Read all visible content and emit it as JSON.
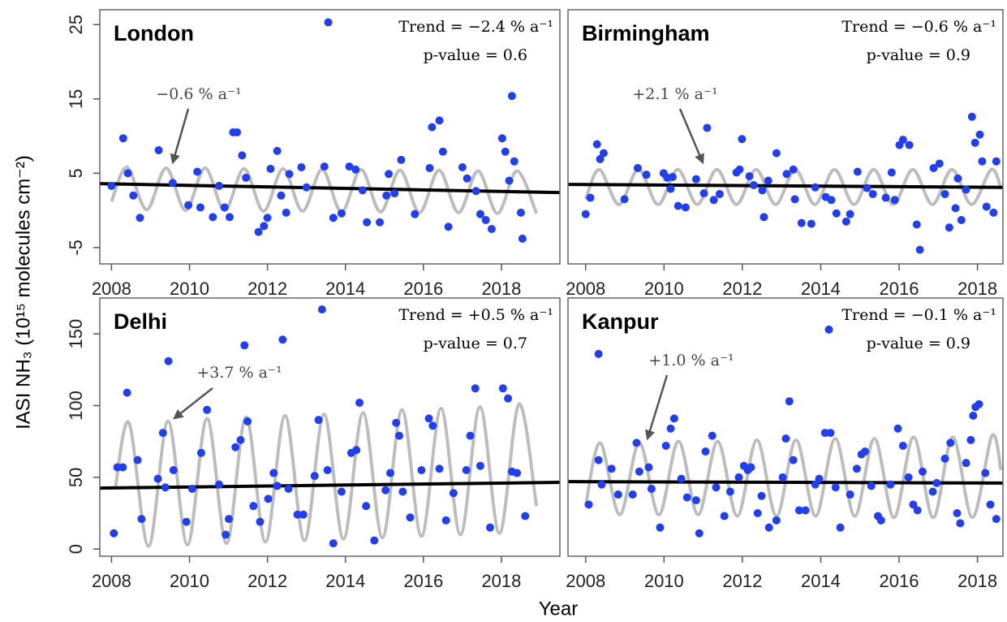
{
  "ylabel": "IASI NH₃ (10¹⁵ molecules cm⁻²)",
  "xlabel": "Year",
  "chart_data": [
    {
      "type": "scatter",
      "title": "London",
      "trend_text": "Trend = −2.4 % a⁻¹",
      "p_text": "p-value = 0.6",
      "arrow_label": "−0.6 % a⁻¹",
      "xlim": [
        2007.7,
        2019.5
      ],
      "ylim": [
        -7.2,
        27
      ],
      "xticks": [
        2008,
        2010,
        2012,
        2014,
        2016,
        2018
      ],
      "yticks": [
        -5,
        5,
        15,
        25
      ],
      "color": "#1f3ff0",
      "x": [
        2008.0,
        2008.3,
        2008.42,
        2008.56,
        2008.73,
        2009.21,
        2009.57,
        2009.97,
        2010.2,
        2010.28,
        2010.6,
        2010.76,
        2010.9,
        2011.03,
        2011.12,
        2011.22,
        2011.35,
        2011.45,
        2011.77,
        2011.91,
        2012.0,
        2012.08,
        2012.25,
        2012.35,
        2012.56,
        2012.48,
        2012.87,
        2013.0,
        2013.46,
        2013.56,
        2013.69,
        2013.9,
        2014.1,
        2014.26,
        2014.44,
        2014.55,
        2014.88,
        2015.05,
        2015.11,
        2015.26,
        2015.43,
        2015.78,
        2016.16,
        2016.22,
        2016.41,
        2016.5,
        2016.64,
        2017.0,
        2017.12,
        2017.35,
        2017.46,
        2017.6,
        2017.75,
        2018.02,
        2018.1,
        2018.2,
        2018.27,
        2018.33,
        2018.5,
        2018.54
      ],
      "values": [
        3.3,
        9.7,
        5.0,
        2.0,
        -1.0,
        8.1,
        3.7,
        0.7,
        5.2,
        0.4,
        -0.9,
        3.3,
        0.4,
        -0.9,
        10.5,
        10.5,
        7.4,
        4.4,
        -2.9,
        -2.1,
        -1.0,
        5.6,
        8.0,
        2.0,
        4.9,
        -0.3,
        5.8,
        3.1,
        5.9,
        25.3,
        -1.0,
        -0.4,
        5.9,
        5.5,
        2.7,
        -1.6,
        -1.6,
        2.0,
        4.9,
        2.3,
        6.8,
        -0.5,
        5.7,
        11.2,
        12.1,
        7.9,
        -2.2,
        5.8,
        4.3,
        2.6,
        -0.5,
        -1.3,
        -2.5,
        9.7,
        7.9,
        4.0,
        15.4,
        6.6,
        -0.3,
        -3.8
      ],
      "fit": {
        "color": "#bdbdbd",
        "x": [
          2008.0,
          2008.4,
          2008.9,
          2009.4,
          2009.9,
          2010.4,
          2010.9,
          2011.4,
          2011.9,
          2012.4,
          2012.9,
          2013.4,
          2013.9,
          2014.4,
          2014.9,
          2015.4,
          2015.9,
          2016.4,
          2016.9,
          2017.4,
          2017.9,
          2018.4,
          2018.9
        ],
        "values": [
          1.2,
          5.8,
          0.1,
          5.7,
          0.0,
          5.7,
          0.0,
          5.6,
          -0.1,
          5.6,
          -0.1,
          5.5,
          -0.2,
          5.5,
          -0.2,
          5.4,
          -0.3,
          5.4,
          -0.3,
          5.3,
          -0.4,
          5.3,
          -0.4
        ]
      },
      "trend": {
        "color": "#000000",
        "x": [
          2007.7,
          2019.5
        ],
        "values": [
          3.6,
          2.4
        ]
      }
    },
    {
      "type": "scatter",
      "title": "Birmingham",
      "trend_text": "Trend = −0.6 % a⁻¹",
      "p_text": "p-value = 0.9",
      "arrow_label": "+2.1 % a⁻¹",
      "xlim": [
        2007.55,
        2018.65
      ],
      "ylim": [
        -7.2,
        27
      ],
      "xticks": [
        2008,
        2010,
        2012,
        2014,
        2016,
        2018
      ],
      "color": "#1f3ff0",
      "x": [
        2008.0,
        2008.12,
        2008.29,
        2008.37,
        2008.46,
        2008.99,
        2009.33,
        2009.55,
        2009.99,
        2010.08,
        2010.17,
        2010.22,
        2010.36,
        2010.55,
        2010.82,
        2011.02,
        2011.1,
        2011.27,
        2011.42,
        2011.85,
        2011.93,
        2011.99,
        2012.18,
        2012.29,
        2012.51,
        2012.55,
        2012.66,
        2012.87,
        2013.13,
        2013.3,
        2013.34,
        2013.51,
        2013.76,
        2013.86,
        2014.13,
        2014.27,
        2014.4,
        2014.65,
        2014.75,
        2014.94,
        2015.18,
        2015.33,
        2015.66,
        2015.81,
        2015.89,
        2016.01,
        2016.1,
        2016.26,
        2016.45,
        2016.53,
        2016.88,
        2017.03,
        2017.17,
        2017.28,
        2017.44,
        2017.5,
        2017.59,
        2017.71,
        2017.86,
        2017.94,
        2018.06,
        2018.12,
        2018.23,
        2018.41,
        2018.48
      ],
      "values": [
        -0.5,
        1.7,
        8.9,
        6.9,
        7.7,
        1.5,
        5.7,
        4.8,
        5.0,
        4.4,
        2.9,
        4.5,
        0.6,
        0.4,
        4.2,
        2.3,
        11.1,
        1.4,
        2.2,
        5.1,
        5.5,
        9.6,
        4.6,
        3.4,
        2.7,
        -0.9,
        4.0,
        7.7,
        4.9,
        5.5,
        1.5,
        -1.7,
        -1.8,
        3.1,
        1.8,
        1.4,
        -0.4,
        -1.5,
        -0.5,
        5.2,
        3.0,
        2.2,
        1.7,
        5.1,
        1.4,
        8.8,
        9.5,
        8.8,
        -1.9,
        -5.3,
        5.7,
        6.3,
        2.2,
        -2.3,
        0.3,
        4.3,
        -1.3,
        2.8,
        12.6,
        9.1,
        10.2,
        6.6,
        0.5,
        -0.3,
        6.6
      ],
      "fit": {
        "color": "#bdbdbd",
        "x": [
          2008.0,
          2008.35,
          2008.85,
          2009.35,
          2009.85,
          2010.35,
          2010.85,
          2011.35,
          2011.85,
          2012.35,
          2012.85,
          2013.35,
          2013.85,
          2014.35,
          2014.85,
          2015.35,
          2015.85,
          2016.35,
          2016.85,
          2017.35,
          2017.85,
          2018.35,
          2018.6
        ],
        "values": [
          1.5,
          5.5,
          0.8,
          5.5,
          0.8,
          5.5,
          0.8,
          5.5,
          0.8,
          5.5,
          0.8,
          5.5,
          0.8,
          5.5,
          0.8,
          5.5,
          0.8,
          5.5,
          0.8,
          5.5,
          0.8,
          5.5,
          3.0
        ]
      },
      "trend": {
        "color": "#000000",
        "x": [
          2007.55,
          2018.65
        ],
        "values": [
          3.5,
          3.1
        ]
      }
    },
    {
      "type": "scatter",
      "title": "Delhi",
      "trend_text": "Trend = +0.5 % a⁻¹",
      "p_text": "p-value = 0.7",
      "arrow_label": "+3.7 % a⁻¹",
      "xlim": [
        2007.7,
        2019.5
      ],
      "ylim": [
        -5,
        175
      ],
      "xticks": [
        2008,
        2010,
        2012,
        2014,
        2016,
        2018
      ],
      "yticks": [
        0,
        50,
        100,
        150
      ],
      "color": "#1f3ff0",
      "x": [
        2008.06,
        2008.15,
        2008.29,
        2008.4,
        2008.67,
        2008.77,
        2009.19,
        2009.32,
        2009.38,
        2009.46,
        2009.59,
        2009.92,
        2010.07,
        2010.3,
        2010.45,
        2010.76,
        2010.93,
        2011.01,
        2011.18,
        2011.31,
        2011.41,
        2011.49,
        2011.64,
        2011.81,
        2012.02,
        2012.16,
        2012.25,
        2012.39,
        2012.54,
        2012.77,
        2012.92,
        2013.21,
        2013.31,
        2013.4,
        2013.54,
        2013.69,
        2013.9,
        2014.15,
        2014.28,
        2014.36,
        2014.53,
        2014.74,
        2015.03,
        2015.15,
        2015.3,
        2015.38,
        2015.47,
        2015.66,
        2015.95,
        2016.14,
        2016.24,
        2016.41,
        2016.58,
        2016.77,
        2017.1,
        2017.2,
        2017.33,
        2017.46,
        2017.71,
        2018.04,
        2018.17,
        2018.27,
        2018.4,
        2018.61
      ],
      "values": [
        11,
        57,
        57,
        109,
        62,
        21,
        49,
        81,
        43,
        131,
        55,
        19,
        42,
        67,
        97,
        45,
        10,
        21,
        71,
        76,
        142,
        89,
        30,
        19,
        35,
        53,
        44,
        146,
        42,
        24,
        24,
        51,
        90,
        167,
        55,
        4,
        40,
        67,
        69,
        102,
        30,
        6,
        41,
        53,
        88,
        79,
        40,
        22,
        55,
        91,
        86,
        56,
        20,
        39,
        55,
        79,
        112,
        58,
        15,
        112,
        105,
        54,
        53,
        23
      ],
      "fit": {
        "color": "#bdbdbd",
        "x": [
          2008.1,
          2008.45,
          2008.95,
          2009.45,
          2009.95,
          2010.45,
          2010.95,
          2011.45,
          2011.95,
          2012.45,
          2012.95,
          2013.45,
          2013.95,
          2014.45,
          2014.95,
          2015.45,
          2015.95,
          2016.45,
          2016.95,
          2017.45,
          2017.95,
          2018.45,
          2018.9
        ],
        "values": [
          43,
          88,
          2,
          89,
          3,
          91,
          4,
          92,
          5,
          93,
          6,
          94,
          7,
          95,
          8,
          97,
          9,
          98,
          10,
          99,
          11,
          101,
          30
        ]
      },
      "trend": {
        "color": "#000000",
        "x": [
          2007.7,
          2019.5
        ],
        "values": [
          42.5,
          46.5
        ]
      }
    },
    {
      "type": "scatter",
      "title": "Kanpur",
      "trend_text": "Trend = −0.1 % a⁻¹",
      "p_text": "p-value = 0.9",
      "arrow_label": "+1.0 % a⁻¹",
      "xlim": [
        2007.55,
        2018.65
      ],
      "ylim": [
        -5,
        175
      ],
      "xticks": [
        2008,
        2010,
        2012,
        2014,
        2016,
        2018
      ],
      "color": "#1f3ff0",
      "x": [
        2008.08,
        2008.33,
        2008.33,
        2008.41,
        2008.66,
        2008.83,
        2009.2,
        2009.3,
        2009.37,
        2009.61,
        2009.68,
        2009.9,
        2010.05,
        2010.17,
        2010.26,
        2010.44,
        2010.59,
        2010.82,
        2010.9,
        2011.06,
        2011.23,
        2011.33,
        2011.54,
        2011.69,
        2011.91,
        2012.04,
        2012.14,
        2012.22,
        2012.39,
        2012.49,
        2012.68,
        2012.87,
        2013.03,
        2013.11,
        2013.2,
        2013.3,
        2013.45,
        2013.61,
        2013.86,
        2013.96,
        2014.11,
        2014.21,
        2014.25,
        2014.38,
        2014.5,
        2014.75,
        2014.92,
        2015.04,
        2015.13,
        2015.29,
        2015.46,
        2015.54,
        2015.78,
        2015.97,
        2016.1,
        2016.24,
        2016.36,
        2016.47,
        2016.6,
        2016.86,
        2016.96,
        2017.17,
        2017.31,
        2017.48,
        2017.56,
        2017.71,
        2017.83,
        2017.89,
        2017.95,
        2018.04,
        2018.2,
        2018.33,
        2018.48
      ],
      "values": [
        31,
        136,
        62,
        45,
        56,
        38,
        38,
        74,
        54,
        57,
        42,
        15,
        72,
        84,
        91,
        49,
        36,
        34,
        11,
        68,
        79,
        43,
        23,
        40,
        50,
        58,
        55,
        57,
        25,
        37,
        15,
        20,
        50,
        77,
        103,
        62,
        27,
        27,
        45,
        49,
        81,
        153,
        81,
        43,
        15,
        38,
        56,
        66,
        68,
        44,
        23,
        20,
        45,
        84,
        72,
        50,
        31,
        27,
        54,
        40,
        46,
        63,
        74,
        25,
        18,
        60,
        76,
        93,
        99,
        101,
        53,
        31,
        21
      ],
      "fit": {
        "color": "#bdbdbd",
        "x": [
          2008.0,
          2008.37,
          2008.87,
          2009.37,
          2009.87,
          2010.37,
          2010.87,
          2011.37,
          2011.87,
          2012.37,
          2012.87,
          2013.37,
          2013.87,
          2014.37,
          2014.87,
          2015.37,
          2015.87,
          2016.37,
          2016.87,
          2017.37,
          2017.87,
          2018.37,
          2018.6
        ],
        "values": [
          30,
          74,
          24,
          74,
          24,
          75,
          24,
          75,
          23,
          76,
          23,
          76,
          23,
          77,
          23,
          77,
          22,
          78,
          22,
          78,
          22,
          79,
          55
        ]
      },
      "trend": {
        "color": "#000000",
        "x": [
          2007.55,
          2018.65
        ],
        "values": [
          47,
          46
        ]
      }
    }
  ]
}
